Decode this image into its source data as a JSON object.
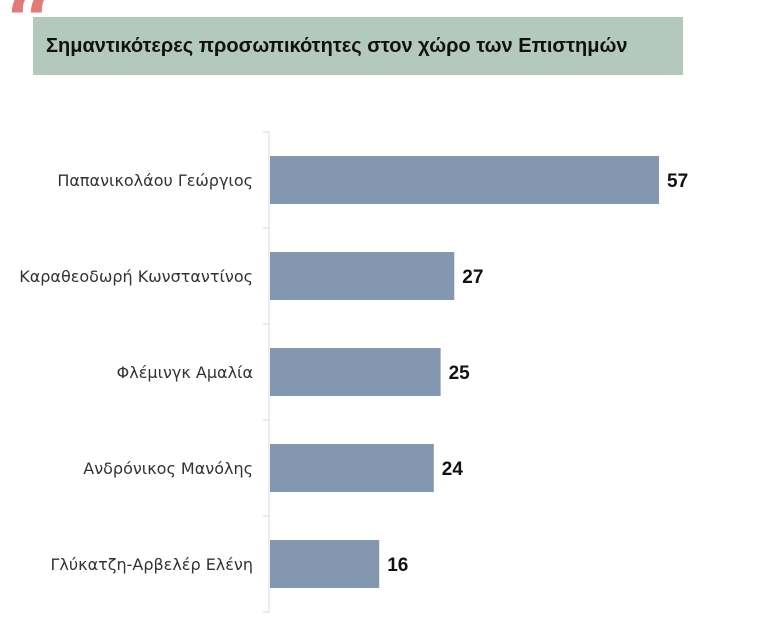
{
  "chart_data": {
    "type": "bar",
    "orientation": "horizontal",
    "title": "Σημαντικότερες προσωπικότητες στον χώρο των Επιστημών",
    "categories": [
      "Παπανικολάου Γεώργιος",
      "Καραθεοδωρή Κωνσταντίνος",
      "Φλέμινγκ Αμαλία",
      "Ανδρόνικος Μανόλης",
      "Γλύκατζη-Αρβελέρ Ελένη"
    ],
    "values": [
      57,
      27,
      25,
      24,
      16
    ],
    "xlim": [
      0,
      60
    ],
    "grid": false,
    "legend": "none",
    "bar_color": "#8497b0",
    "axis_color": "#d9d9d9",
    "accent_color": "#e07b78",
    "title_bg_color": "#b3c9bd"
  }
}
